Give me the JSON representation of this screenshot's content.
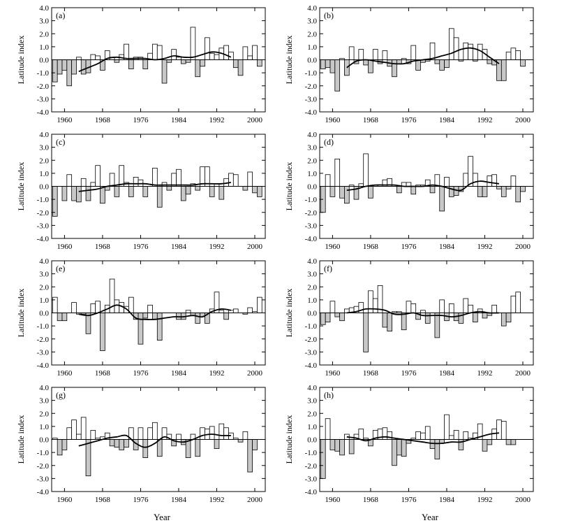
{
  "figure": {
    "x_label": "Year",
    "y_label": "Latitude index"
  },
  "colors": {
    "positive_bar": "#ffffff",
    "negative_bar": "#c8c8c8",
    "stroke": "#000000",
    "smooth_line": "#000000"
  },
  "chart_data": [
    {
      "type": "bar",
      "panel_label": "(a)",
      "x": [
        1958,
        1959,
        1960,
        1961,
        1962,
        1963,
        1964,
        1965,
        1966,
        1967,
        1968,
        1969,
        1970,
        1971,
        1972,
        1973,
        1974,
        1975,
        1976,
        1977,
        1978,
        1979,
        1980,
        1981,
        1982,
        1983,
        1984,
        1985,
        1986,
        1987,
        1988,
        1989,
        1990,
        1991,
        1992,
        1993,
        1994,
        1995,
        1996,
        1997,
        1998,
        1999,
        2000,
        2001
      ],
      "values": [
        -1.7,
        -1.1,
        -0.8,
        -2.0,
        -1.1,
        0.2,
        -1.1,
        -1.0,
        0.4,
        0.3,
        -0.8,
        0.7,
        0.2,
        -0.2,
        0.4,
        1.2,
        -0.7,
        0.2,
        0.2,
        -0.7,
        0.5,
        1.2,
        1.1,
        -1.8,
        -0.2,
        0.8,
        0.2,
        -0.3,
        -0.2,
        2.5,
        -1.3,
        -0.5,
        1.7,
        0.5,
        0.4,
        0.9,
        1.1,
        0.6,
        -0.6,
        -1.2,
        1.0,
        0.3,
        1.1,
        -0.5
      ],
      "smooth": {
        "x": [
          1963,
          1965,
          1967,
          1969,
          1971,
          1973,
          1975,
          1977,
          1979,
          1981,
          1983,
          1985,
          1987,
          1989,
          1991,
          1993,
          1995
        ],
        "y": [
          -0.9,
          -0.6,
          -0.3,
          0.1,
          0.2,
          0.1,
          0.1,
          0.1,
          0.0,
          0.1,
          0.3,
          0.2,
          0.2,
          0.4,
          0.6,
          0.5,
          0.2
        ]
      },
      "x_ticks": [
        1960,
        1968,
        1976,
        1984,
        1992,
        2000
      ],
      "y_ticks": [
        -4,
        -3,
        -2,
        -1,
        0,
        1,
        2,
        3,
        4
      ],
      "x_range": [
        1957.3,
        2002.2
      ],
      "ylim": [
        -4,
        4
      ]
    },
    {
      "type": "bar",
      "panel_label": "(b)",
      "x": [
        1958,
        1959,
        1960,
        1961,
        1962,
        1963,
        1964,
        1965,
        1966,
        1967,
        1968,
        1969,
        1970,
        1971,
        1972,
        1973,
        1974,
        1975,
        1976,
        1977,
        1978,
        1979,
        1980,
        1981,
        1982,
        1983,
        1984,
        1985,
        1986,
        1987,
        1988,
        1989,
        1990,
        1991,
        1992,
        1993,
        1994,
        1995,
        1996,
        1997,
        1998,
        1999,
        2000,
        2001
      ],
      "values": [
        -0.7,
        -0.6,
        -1.0,
        -2.4,
        0.1,
        -1.2,
        1.0,
        -0.3,
        0.8,
        -0.4,
        -1.0,
        0.8,
        -0.3,
        0.7,
        -0.5,
        -1.3,
        -0.3,
        0.1,
        -0.3,
        1.1,
        -0.8,
        -0.2,
        -0.1,
        1.3,
        -0.3,
        -0.8,
        -0.6,
        2.4,
        1.7,
        -0.1,
        1.3,
        1.2,
        -0.1,
        1.2,
        0.8,
        -0.3,
        -0.4,
        -1.6,
        -1.6,
        0.6,
        0.9,
        0.7,
        -0.5,
        0.0
      ],
      "smooth": {
        "x": [
          1963,
          1965,
          1967,
          1969,
          1971,
          1973,
          1975,
          1977,
          1979,
          1981,
          1983,
          1985,
          1987,
          1989,
          1991,
          1993,
          1995
        ],
        "y": [
          -0.6,
          -0.1,
          0.0,
          -0.1,
          -0.2,
          -0.3,
          -0.3,
          -0.1,
          0.0,
          0.1,
          0.3,
          0.5,
          0.8,
          0.9,
          0.7,
          0.2,
          -0.3
        ]
      },
      "x_ticks": [
        1960,
        1968,
        1976,
        1984,
        1992,
        2000
      ],
      "y_ticks": [
        -4,
        -3,
        -2,
        -1,
        0,
        1,
        2,
        3,
        4
      ],
      "x_range": [
        1957.3,
        2002.2
      ],
      "ylim": [
        -4,
        4
      ]
    },
    {
      "type": "bar",
      "panel_label": "(c)",
      "x": [
        1958,
        1959,
        1960,
        1961,
        1962,
        1963,
        1964,
        1965,
        1966,
        1967,
        1968,
        1969,
        1970,
        1971,
        1972,
        1973,
        1974,
        1975,
        1976,
        1977,
        1978,
        1979,
        1980,
        1981,
        1982,
        1983,
        1984,
        1985,
        1986,
        1987,
        1988,
        1989,
        1990,
        1991,
        1992,
        1993,
        1994,
        1995,
        1996,
        1997,
        1998,
        1999,
        2000,
        2001
      ],
      "values": [
        -2.3,
        0.0,
        -1.1,
        0.9,
        -1.1,
        -1.2,
        0.6,
        -1.1,
        0.3,
        1.6,
        -1.3,
        -0.3,
        1.0,
        -0.8,
        1.6,
        0.3,
        -0.8,
        0.7,
        0.5,
        -0.8,
        0.0,
        1.4,
        -1.6,
        0.3,
        -0.3,
        1.0,
        1.3,
        -1.1,
        -0.6,
        0.2,
        -0.3,
        1.5,
        1.5,
        -0.8,
        0.2,
        -1.0,
        0.6,
        1.0,
        0.9,
        0.0,
        -0.3,
        1.1,
        -0.5,
        -0.8
      ],
      "smooth": {
        "x": [
          1963,
          1965,
          1967,
          1969,
          1971,
          1973,
          1975,
          1977,
          1979,
          1981,
          1983,
          1985,
          1987,
          1989,
          1991,
          1993,
          1995
        ],
        "y": [
          -0.4,
          -0.3,
          -0.2,
          0.0,
          0.1,
          0.2,
          0.2,
          0.2,
          0.1,
          0.1,
          0.1,
          0.1,
          0.1,
          0.2,
          0.2,
          0.2,
          0.3
        ]
      },
      "x_ticks": [
        1960,
        1968,
        1976,
        1984,
        1992,
        2000
      ],
      "y_ticks": [
        -4,
        -3,
        -2,
        -1,
        0,
        1,
        2,
        3,
        4
      ],
      "x_range": [
        1957.3,
        2002.2
      ],
      "ylim": [
        -4,
        4
      ]
    },
    {
      "type": "bar",
      "panel_label": "(d)",
      "x": [
        1958,
        1959,
        1960,
        1961,
        1962,
        1963,
        1964,
        1965,
        1966,
        1967,
        1968,
        1969,
        1970,
        1971,
        1972,
        1973,
        1974,
        1975,
        1976,
        1977,
        1978,
        1979,
        1980,
        1981,
        1982,
        1983,
        1984,
        1985,
        1986,
        1987,
        1988,
        1989,
        1990,
        1991,
        1992,
        1993,
        1994,
        1995,
        1996,
        1997,
        1998,
        1999,
        2000,
        2001
      ],
      "values": [
        -2.0,
        0.9,
        -0.8,
        2.1,
        -0.9,
        -1.3,
        0.1,
        -1.0,
        0.2,
        2.5,
        -0.9,
        0.1,
        0.1,
        0.5,
        0.6,
        0.1,
        -0.5,
        0.3,
        0.3,
        -0.6,
        0.1,
        0.1,
        0.5,
        -0.5,
        0.9,
        -1.9,
        0.7,
        -0.8,
        -0.7,
        -0.4,
        1.0,
        2.3,
        1.0,
        -0.8,
        -0.8,
        0.8,
        0.9,
        -0.2,
        -0.8,
        -0.2,
        0.8,
        -1.2,
        -0.4,
        0.0
      ],
      "smooth": {
        "x": [
          1963,
          1965,
          1967,
          1969,
          1971,
          1973,
          1975,
          1977,
          1979,
          1981,
          1983,
          1985,
          1987,
          1989,
          1991,
          1993,
          1995
        ],
        "y": [
          -0.3,
          -0.2,
          0.0,
          0.1,
          0.1,
          0.1,
          0.0,
          0.0,
          0.0,
          0.1,
          0.0,
          -0.2,
          -0.3,
          0.2,
          0.4,
          0.3,
          0.2
        ]
      },
      "x_ticks": [
        1960,
        1968,
        1976,
        1984,
        1992,
        2000
      ],
      "y_ticks": [
        -4,
        -3,
        -2,
        -1,
        0,
        1,
        2,
        3,
        4
      ],
      "x_range": [
        1957.3,
        2002.2
      ],
      "ylim": [
        -4,
        4
      ]
    },
    {
      "type": "bar",
      "panel_label": "(e)",
      "x": [
        1958,
        1959,
        1960,
        1961,
        1962,
        1963,
        1964,
        1965,
        1966,
        1967,
        1968,
        1969,
        1970,
        1971,
        1972,
        1973,
        1974,
        1975,
        1976,
        1977,
        1978,
        1979,
        1980,
        1981,
        1982,
        1983,
        1984,
        1985,
        1986,
        1987,
        1988,
        1989,
        1990,
        1991,
        1992,
        1993,
        1994,
        1995,
        1996,
        1997,
        1998,
        1999,
        2000,
        2001
      ],
      "values": [
        1.2,
        -0.6,
        -0.6,
        0.0,
        0.8,
        -0.1,
        -0.1,
        -1.6,
        0.7,
        0.9,
        -2.9,
        0.6,
        2.6,
        1.0,
        0.8,
        0.5,
        1.2,
        -0.5,
        -2.4,
        -0.4,
        0.6,
        -0.5,
        -2.1,
        0.0,
        0.0,
        0.0,
        -0.5,
        -0.5,
        0.2,
        -0.2,
        -0.8,
        -0.3,
        -0.8,
        0.3,
        1.6,
        0.2,
        -0.5,
        0.2,
        0.3,
        0.0,
        -0.1,
        0.4,
        0.1,
        1.2
      ],
      "smooth": {
        "x": [
          1963,
          1965,
          1967,
          1969,
          1971,
          1973,
          1975,
          1977,
          1979,
          1981,
          1983,
          1985,
          1987,
          1989,
          1991,
          1993,
          1995
        ],
        "y": [
          -0.1,
          -0.2,
          0.0,
          0.3,
          0.6,
          0.3,
          -0.4,
          -0.5,
          -0.5,
          -0.4,
          -0.3,
          -0.3,
          -0.2,
          -0.3,
          0.1,
          0.3,
          0.2
        ]
      },
      "x_ticks": [
        1960,
        1968,
        1976,
        1984,
        1992,
        2000
      ],
      "y_ticks": [
        -4,
        -3,
        -2,
        -1,
        0,
        1,
        2,
        3,
        4
      ],
      "x_range": [
        1957.3,
        2002.2
      ],
      "ylim": [
        -4,
        4
      ]
    },
    {
      "type": "bar",
      "panel_label": "(f)",
      "x": [
        1958,
        1959,
        1960,
        1961,
        1962,
        1963,
        1964,
        1965,
        1966,
        1967,
        1968,
        1969,
        1970,
        1971,
        1972,
        1973,
        1974,
        1975,
        1976,
        1977,
        1978,
        1979,
        1980,
        1981,
        1982,
        1983,
        1984,
        1985,
        1986,
        1987,
        1988,
        1989,
        1990,
        1991,
        1992,
        1993,
        1994,
        1995,
        1996,
        1997,
        1998,
        1999,
        2000,
        2001
      ],
      "values": [
        -0.9,
        -0.7,
        0.9,
        -0.3,
        -0.6,
        0.3,
        0.4,
        0.5,
        0.8,
        -3.0,
        1.7,
        1.1,
        2.1,
        -1.1,
        -1.4,
        0.1,
        0.1,
        -1.3,
        0.9,
        0.7,
        -0.5,
        0.2,
        -0.8,
        0.0,
        -1.9,
        1.0,
        -0.6,
        0.7,
        -0.6,
        -0.8,
        1.1,
        0.6,
        -0.7,
        0.3,
        -0.4,
        -0.2,
        0.6,
        0.0,
        -1.0,
        -0.7,
        1.3,
        1.6,
        0.0,
        0.0
      ],
      "smooth": {
        "x": [
          1963,
          1965,
          1967,
          1969,
          1971,
          1973,
          1975,
          1977,
          1979,
          1981,
          1983,
          1985,
          1987,
          1989,
          1991,
          1993,
          1995
        ],
        "y": [
          0.0,
          0.1,
          0.3,
          0.3,
          0.2,
          -0.1,
          -0.1,
          0.0,
          -0.2,
          -0.2,
          -0.2,
          -0.3,
          -0.2,
          0.0,
          0.1,
          0.0,
          0.0
        ]
      },
      "x_ticks": [
        1960,
        1968,
        1976,
        1984,
        1992,
        2000
      ],
      "y_ticks": [
        -4,
        -3,
        -2,
        -1,
        0,
        1,
        2,
        3,
        4
      ],
      "x_range": [
        1957.3,
        2002.2
      ],
      "ylim": [
        -4,
        4
      ]
    },
    {
      "type": "bar",
      "panel_label": "(g)",
      "x": [
        1958,
        1959,
        1960,
        1961,
        1962,
        1963,
        1964,
        1965,
        1966,
        1967,
        1968,
        1969,
        1970,
        1971,
        1972,
        1973,
        1974,
        1975,
        1976,
        1977,
        1978,
        1979,
        1980,
        1981,
        1982,
        1983,
        1984,
        1985,
        1986,
        1987,
        1988,
        1989,
        1990,
        1991,
        1992,
        1993,
        1994,
        1995,
        1996,
        1997,
        1998,
        1999,
        2000,
        2001
      ],
      "values": [
        0.1,
        -1.2,
        -0.8,
        0.9,
        1.5,
        0.4,
        1.7,
        -2.8,
        0.7,
        0.1,
        0.2,
        0.5,
        -0.5,
        -0.6,
        -0.8,
        -0.6,
        0.9,
        -0.8,
        0.9,
        -1.4,
        0.9,
        1.3,
        -1.3,
        0.9,
        0.4,
        -0.5,
        0.4,
        -0.4,
        -1.4,
        0.4,
        -1.3,
        0.9,
        0.8,
        1.0,
        -0.7,
        1.2,
        0.9,
        0.5,
        0.1,
        -0.2,
        0.6,
        -2.5,
        -0.8,
        0.0
      ],
      "smooth": {
        "x": [
          1963,
          1965,
          1967,
          1969,
          1971,
          1973,
          1975,
          1977,
          1979,
          1981,
          1983,
          1985,
          1987,
          1989,
          1991,
          1993,
          1995
        ],
        "y": [
          -0.5,
          -0.3,
          -0.1,
          0.1,
          0.2,
          0.3,
          -0.3,
          -0.6,
          -0.3,
          0.2,
          -0.1,
          -0.2,
          0.0,
          0.3,
          0.4,
          0.3,
          0.3
        ]
      },
      "x_ticks": [
        1960,
        1968,
        1976,
        1984,
        1992,
        2000
      ],
      "y_ticks": [
        -4,
        -3,
        -2,
        -1,
        0,
        1,
        2,
        3,
        4
      ],
      "x_range": [
        1957.3,
        2002.2
      ],
      "ylim": [
        -4,
        4
      ]
    },
    {
      "type": "bar",
      "panel_label": "(h)",
      "x": [
        1958,
        1959,
        1960,
        1961,
        1962,
        1963,
        1964,
        1965,
        1966,
        1967,
        1968,
        1969,
        1970,
        1971,
        1972,
        1973,
        1974,
        1975,
        1976,
        1977,
        1978,
        1979,
        1980,
        1981,
        1982,
        1983,
        1984,
        1985,
        1986,
        1987,
        1988,
        1989,
        1990,
        1991,
        1992,
        1993,
        1994,
        1995,
        1996,
        1997,
        1998,
        1999,
        2000,
        2001
      ],
      "values": [
        -3.0,
        1.6,
        -0.8,
        -0.9,
        -1.2,
        0.4,
        -1.1,
        0.4,
        0.8,
        0.1,
        -0.5,
        0.7,
        0.8,
        0.9,
        0.6,
        -2.0,
        -1.2,
        -1.3,
        -0.3,
        0.1,
        0.6,
        0.5,
        1.0,
        -0.7,
        -1.5,
        -0.3,
        1.9,
        0.3,
        0.7,
        -0.8,
        0.6,
        0.1,
        0.5,
        1.2,
        -0.9,
        -0.4,
        0.8,
        1.5,
        1.4,
        -0.4,
        -0.4,
        0.0,
        0.0,
        0.0
      ],
      "smooth": {
        "x": [
          1963,
          1965,
          1967,
          1969,
          1971,
          1973,
          1975,
          1977,
          1979,
          1981,
          1983,
          1985,
          1987,
          1989,
          1991,
          1993,
          1995
        ],
        "y": [
          0.2,
          0.1,
          -0.1,
          0.1,
          0.2,
          0.1,
          0.0,
          -0.1,
          -0.2,
          -0.3,
          -0.3,
          -0.2,
          -0.2,
          0.0,
          0.2,
          0.4,
          0.5
        ]
      },
      "x_ticks": [
        1960,
        1968,
        1976,
        1984,
        1992,
        2000
      ],
      "y_ticks": [
        -4,
        -3,
        -2,
        -1,
        0,
        1,
        2,
        3,
        4
      ],
      "x_range": [
        1957.3,
        2002.2
      ],
      "ylim": [
        -4,
        4
      ]
    }
  ]
}
